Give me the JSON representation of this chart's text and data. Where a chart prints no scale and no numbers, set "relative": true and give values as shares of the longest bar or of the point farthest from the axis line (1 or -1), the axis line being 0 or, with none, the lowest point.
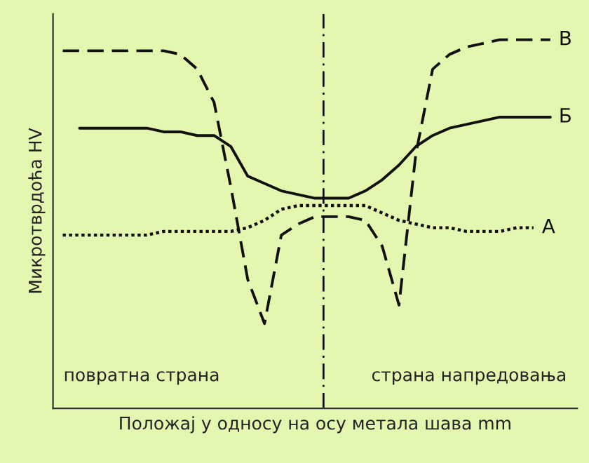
{
  "chart_data": {
    "type": "line",
    "relative": true,
    "xlabel": "Положај у односу на осу метала шава mm",
    "ylabel": "Микротврдоћа HV",
    "categories": [
      null,
      null,
      null,
      null,
      null,
      null,
      null,
      null,
      null,
      null,
      null,
      null,
      null,
      null,
      null,
      null,
      null,
      null,
      null,
      null,
      null,
      null,
      null,
      null,
      null,
      null,
      null,
      null,
      null,
      null
    ],
    "series": [
      {
        "name": "В",
        "color": "#111111",
        "line_style": "dashed",
        "values": [
          0.97,
          0.97,
          0.97,
          0.97,
          0.97,
          0.97,
          0.97,
          0.96,
          0.92,
          0.83,
          0.6,
          0.35,
          0.23,
          0.47,
          0.5,
          0.52,
          0.52,
          0.52,
          0.51,
          0.44,
          0.28,
          0.69,
          0.92,
          0.96,
          0.98,
          0.99,
          1.0,
          1.0,
          1.0,
          1.0
        ]
      },
      {
        "name": "Б",
        "color": "#111111",
        "line_style": "solid",
        "values": [
          null,
          0.76,
          0.76,
          0.76,
          0.76,
          0.76,
          0.75,
          0.75,
          0.74,
          0.74,
          0.71,
          0.63,
          0.61,
          0.59,
          0.58,
          0.57,
          0.57,
          0.57,
          0.59,
          0.62,
          0.66,
          0.71,
          0.74,
          0.76,
          0.77,
          0.78,
          0.79,
          0.79,
          0.79,
          0.79
        ]
      },
      {
        "name": "А",
        "color": "#111111",
        "line_style": "dotted",
        "values": [
          0.47,
          0.47,
          0.47,
          0.47,
          0.47,
          0.47,
          0.48,
          0.48,
          0.48,
          0.48,
          0.48,
          0.49,
          0.51,
          0.54,
          0.55,
          0.55,
          0.55,
          0.55,
          0.55,
          0.53,
          0.51,
          0.5,
          0.49,
          0.49,
          0.48,
          0.48,
          0.48,
          0.49,
          0.49,
          null
        ]
      }
    ],
    "annotations": [
      "повратна страна",
      "страна напредовања"
    ],
    "legend": false,
    "marker": "none"
  }
}
